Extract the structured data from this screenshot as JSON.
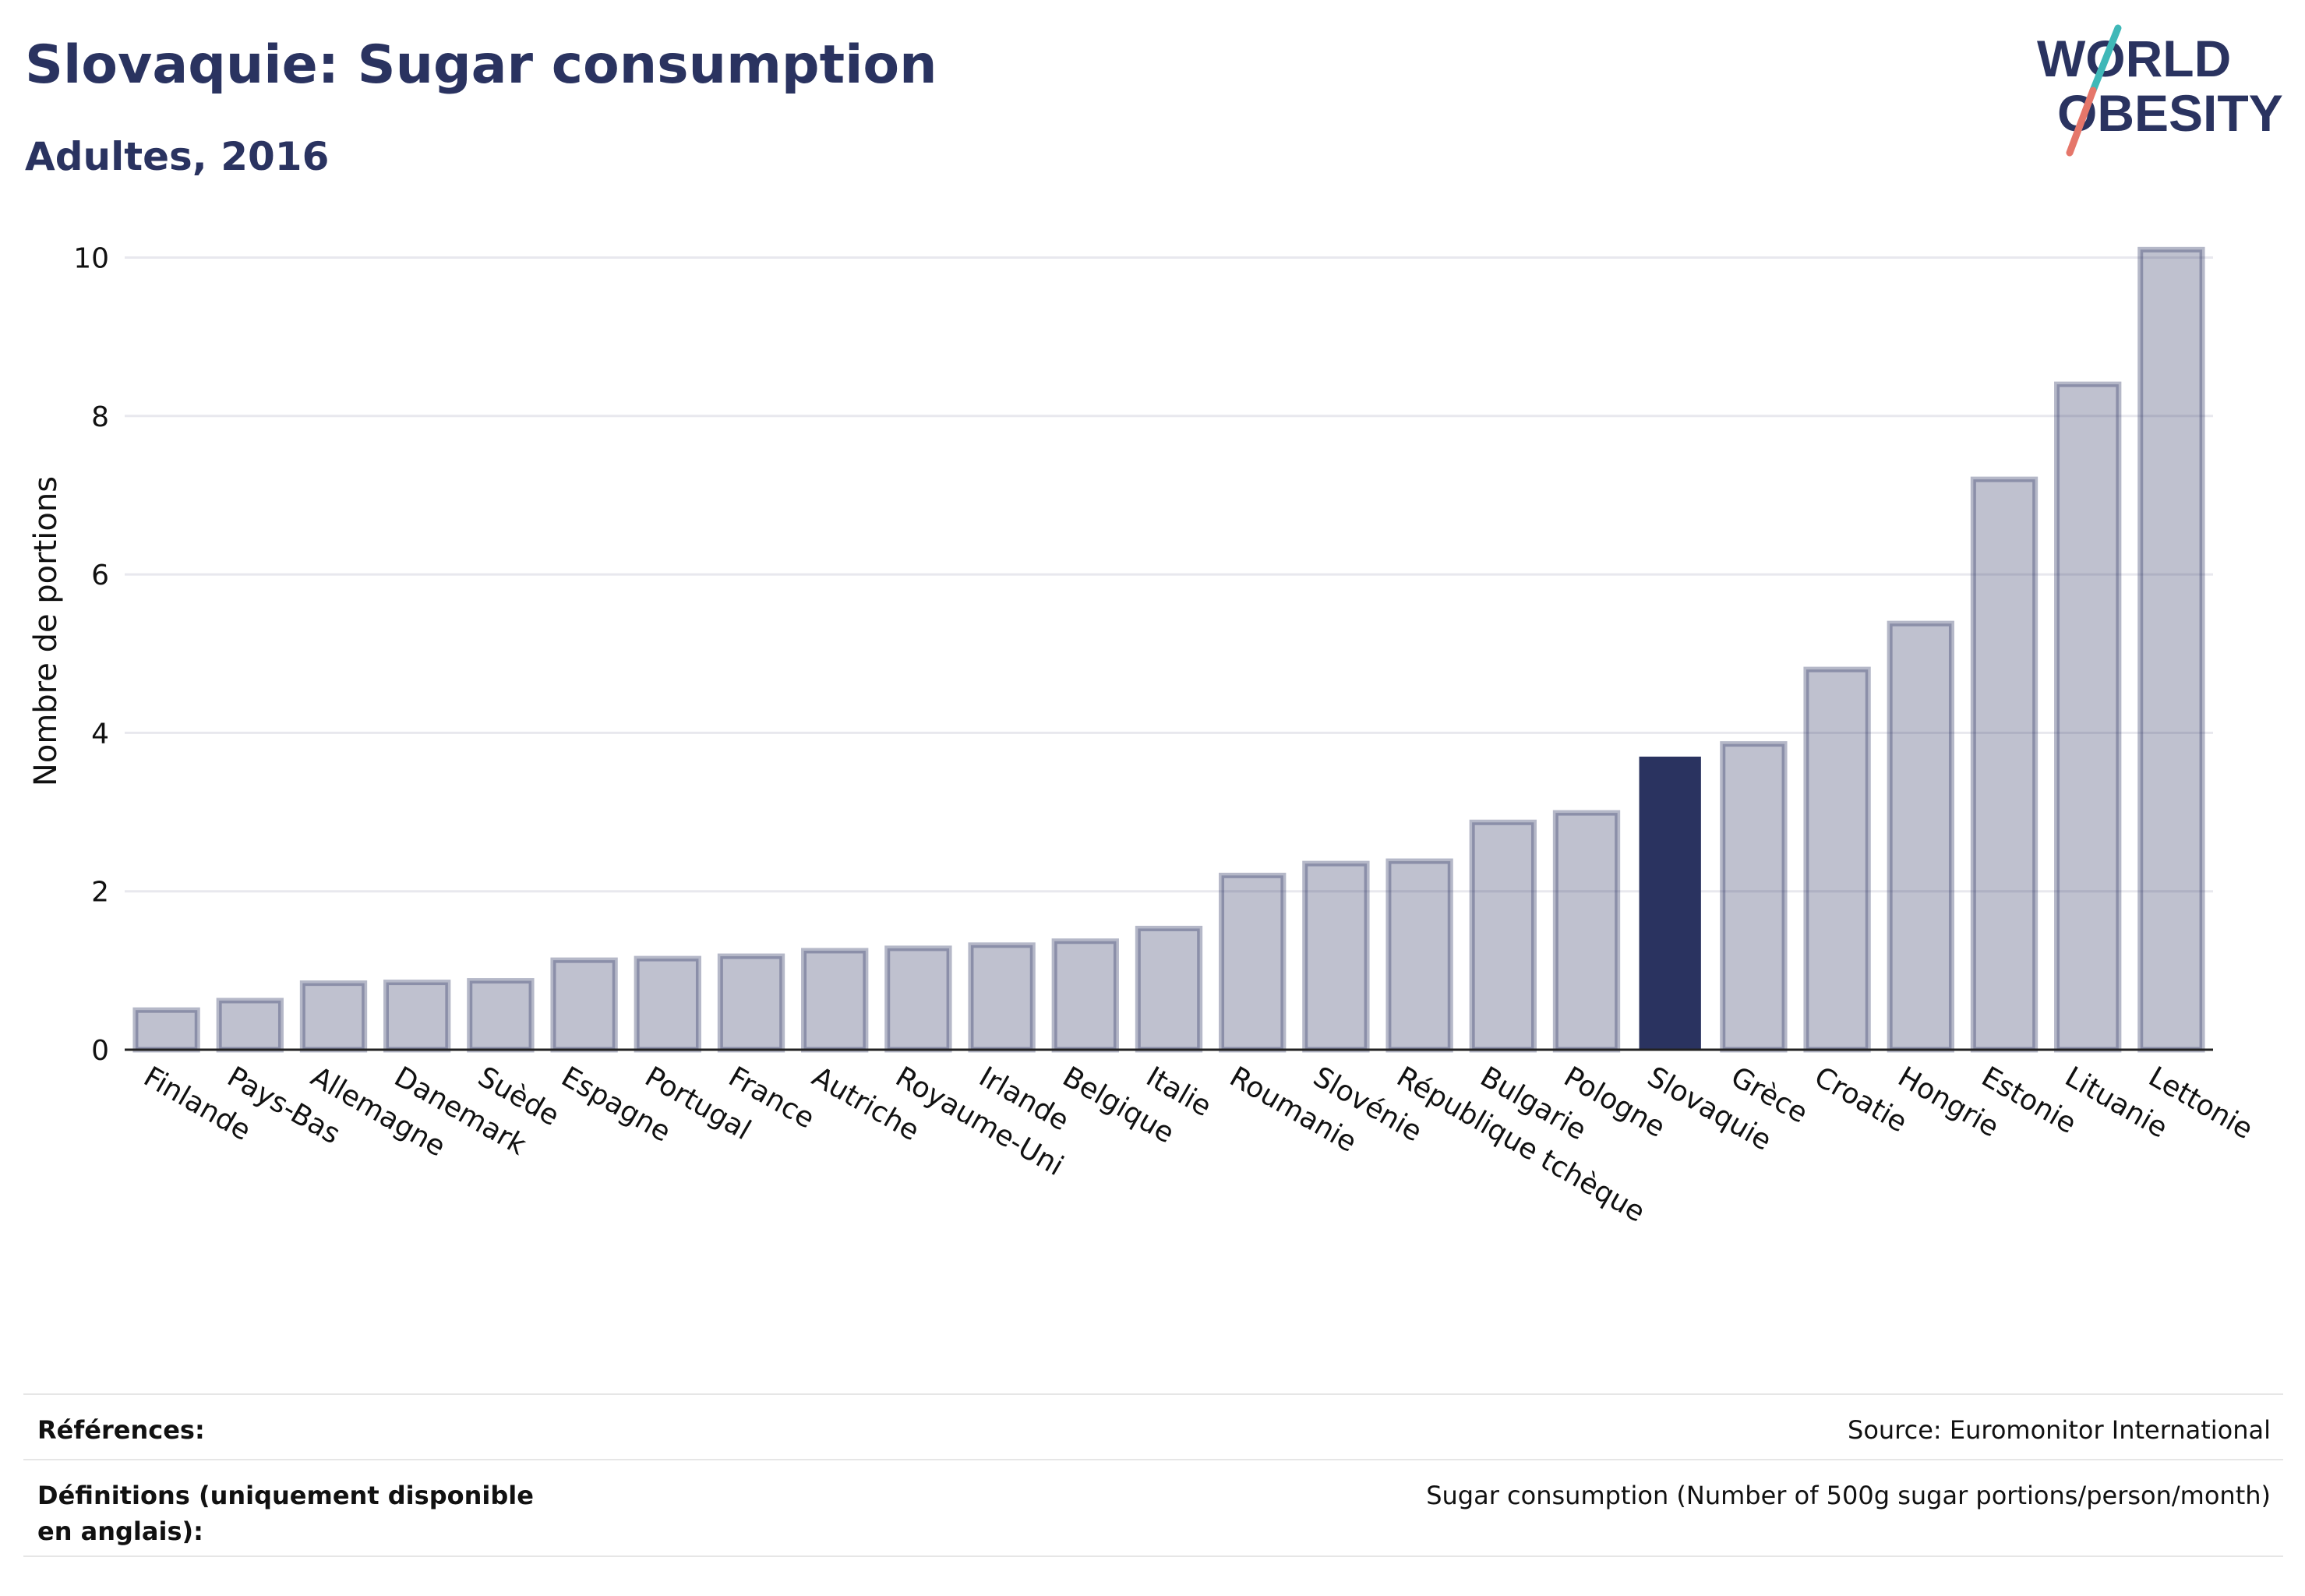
{
  "header": {
    "title": "Slovaquie: Sugar consumption",
    "subtitle": "Adultes, 2016"
  },
  "logo": {
    "line1": "WORLD",
    "line2": "OBESITY",
    "colors": {
      "text": "#2a3360",
      "slash_top": "#3fb8b8",
      "slash_bottom": "#e5766a"
    }
  },
  "chart_data": {
    "type": "bar",
    "ylabel": "Nombre de portions",
    "xlabel": "",
    "ylim": [
      0,
      10.3
    ],
    "yticks": [
      0,
      2,
      4,
      6,
      8,
      10
    ],
    "grid": true,
    "highlight": "Slovaquie",
    "colors": {
      "bar": "#2a3360",
      "highlight": "#2a3360",
      "grid": "#e8e8ee",
      "axis": "#222222"
    },
    "categories": [
      "Finlande",
      "Pays-Bas",
      "Allemagne",
      "Danemark",
      "Suède",
      "Espagne",
      "Portugal",
      "France",
      "Autriche",
      "Royaume-Uni",
      "Irlande",
      "Belgique",
      "Italie",
      "Roumanie",
      "Slovénie",
      "République tchèque",
      "Bulgarie",
      "Pologne",
      "Slovaquie",
      "Grèce",
      "Croatie",
      "Hongrie",
      "Estonie",
      "Lituanie",
      "Lettonie"
    ],
    "values": [
      0.5,
      0.62,
      0.84,
      0.85,
      0.87,
      1.13,
      1.15,
      1.18,
      1.25,
      1.28,
      1.32,
      1.37,
      1.53,
      2.2,
      2.35,
      2.38,
      2.87,
      2.99,
      3.7,
      3.86,
      4.8,
      5.38,
      7.2,
      8.4,
      10.1
    ]
  },
  "footer": {
    "references_label": "Références:",
    "references_value": "Source: Euromonitor International",
    "definitions_label": "Définitions (uniquement disponible en anglais):",
    "definitions_value": "Sugar consumption (Number of 500g sugar portions/person/month)"
  }
}
